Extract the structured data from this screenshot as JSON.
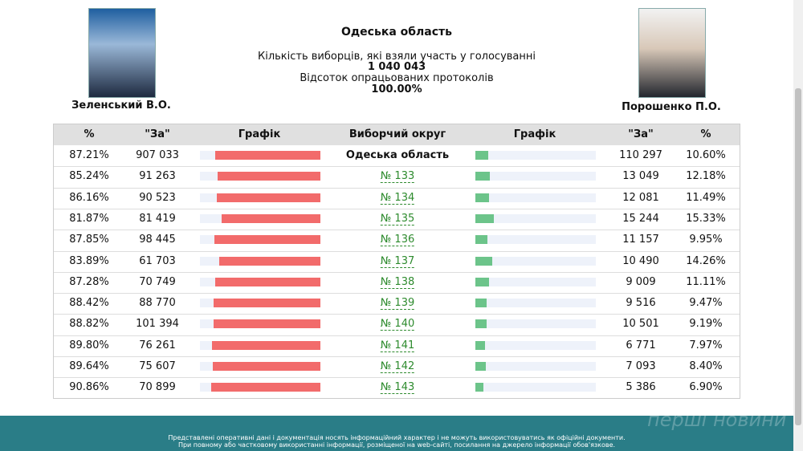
{
  "header": {
    "title": "Одеська область",
    "turnout_label": "Кількість виборців, які взяли участь у голосуванні",
    "turnout": "1 040 043",
    "protocols_label": "Відсоток опрацьованих протоколів",
    "protocols": "100.00%"
  },
  "candidates": {
    "left": "Зеленський В.О.",
    "right": "Порошенко П.О."
  },
  "table": {
    "columns": [
      "%",
      "\"За\"",
      "Графік",
      "Виборчий округ",
      "Графік",
      "\"За\"",
      "%"
    ],
    "rows": [
      {
        "left_pct": "87.21%",
        "left_votes": "907 033",
        "district": "Одеська область",
        "right_votes": "110 297",
        "right_pct": "10.60%"
      },
      {
        "left_pct": "85.24%",
        "left_votes": "91 263",
        "district": "№ 133",
        "right_votes": "13 049",
        "right_pct": "12.18%"
      },
      {
        "left_pct": "86.16%",
        "left_votes": "90 523",
        "district": "№ 134",
        "right_votes": "12 081",
        "right_pct": "11.49%"
      },
      {
        "left_pct": "81.87%",
        "left_votes": "81 419",
        "district": "№ 135",
        "right_votes": "15 244",
        "right_pct": "15.33%"
      },
      {
        "left_pct": "87.85%",
        "left_votes": "98 445",
        "district": "№ 136",
        "right_votes": "11 157",
        "right_pct": "9.95%"
      },
      {
        "left_pct": "83.89%",
        "left_votes": "61 703",
        "district": "№ 137",
        "right_votes": "10 490",
        "right_pct": "14.26%"
      },
      {
        "left_pct": "87.28%",
        "left_votes": "70 749",
        "district": "№ 138",
        "right_votes": "9 009",
        "right_pct": "11.11%"
      },
      {
        "left_pct": "88.42%",
        "left_votes": "88 770",
        "district": "№ 139",
        "right_votes": "9 516",
        "right_pct": "9.47%"
      },
      {
        "left_pct": "88.82%",
        "left_votes": "101 394",
        "district": "№ 140",
        "right_votes": "10 501",
        "right_pct": "9.19%"
      },
      {
        "left_pct": "89.80%",
        "left_votes": "76 261",
        "district": "№ 141",
        "right_votes": "6 771",
        "right_pct": "7.97%"
      },
      {
        "left_pct": "89.64%",
        "left_votes": "75 607",
        "district": "№ 142",
        "right_votes": "7 093",
        "right_pct": "8.40%"
      },
      {
        "left_pct": "90.86%",
        "left_votes": "70 899",
        "district": "№ 143",
        "right_votes": "5 386",
        "right_pct": "6.90%"
      }
    ]
  },
  "footer": {
    "line1": "Представлені оперативні дані і документація носять інформаційний характер і не можуть використовуватись як офіційні документи.",
    "line2": "При повному або частковому використанні інформації, розміщеної на web-сайті, посилання на джерело інформації обов'язкове.",
    "watermark": "перші новини"
  }
}
